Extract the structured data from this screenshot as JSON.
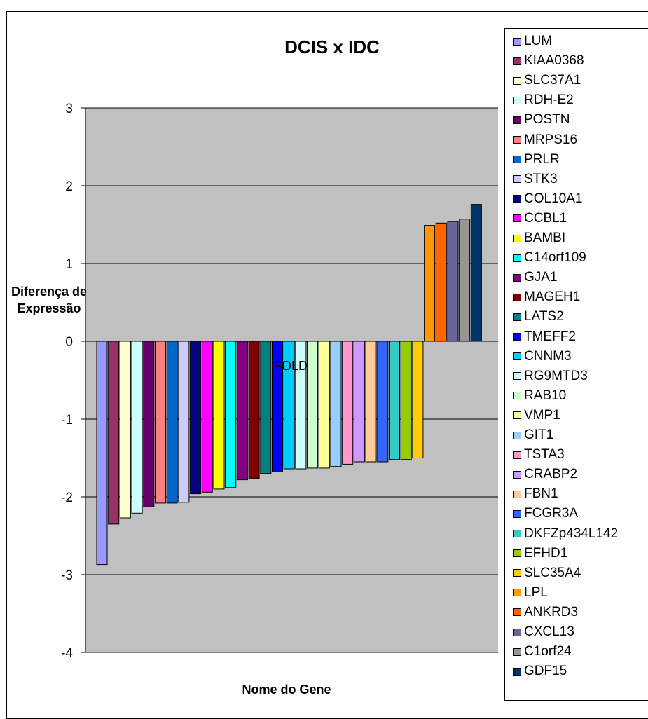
{
  "chart_data": {
    "type": "bar",
    "title": "DCIS x IDC",
    "xlabel": "Nome do Gene",
    "ylabel": "Diferença de Expressão",
    "annotation": "FOLD",
    "ylim": [
      -4,
      3
    ],
    "yticks": [
      3,
      2,
      1,
      0,
      -1,
      -2,
      -3,
      -4
    ],
    "grid": true,
    "legend_position": "right",
    "categories": [
      "LUM",
      "KIAA0368",
      "SLC37A1",
      "RDH-E2",
      "POSTN",
      "MRPS16",
      "PRLR",
      "STK3",
      "COL10A1",
      "CCBL1",
      "BAMBI",
      "C14orf109",
      "GJA1",
      "MAGEH1",
      "LATS2",
      "TMEFF2",
      "CNNM3",
      "RG9MTD3",
      "RAB10",
      "VMP1",
      "GIT1",
      "TSTA3",
      "CRABP2",
      "FBN1",
      "FCGR3A",
      "DKFZp434L142",
      "EFHD1",
      "SLC35A4",
      "LPL",
      "ANKRD3",
      "CXCL13",
      "C1orf24",
      "GDF15"
    ],
    "values": [
      -2.87,
      -2.35,
      -2.27,
      -2.21,
      -2.13,
      -2.08,
      -2.08,
      -2.07,
      -1.96,
      -1.94,
      -1.9,
      -1.88,
      -1.78,
      -1.76,
      -1.7,
      -1.68,
      -1.64,
      -1.64,
      -1.63,
      -1.63,
      -1.61,
      -1.58,
      -1.55,
      -1.55,
      -1.55,
      -1.52,
      -1.52,
      -1.5,
      1.49,
      1.52,
      1.54,
      1.57,
      1.76
    ],
    "colors": [
      "#9999FF",
      "#993366",
      "#FFFFCC",
      "#CCFFFF",
      "#660066",
      "#FF8080",
      "#0066CC",
      "#CCCCFF",
      "#000080",
      "#FF00FF",
      "#FFFF00",
      "#00FFFF",
      "#800080",
      "#800000",
      "#008080",
      "#0000FF",
      "#00CCFF",
      "#CCFFFF",
      "#CCFFCC",
      "#FFFF99",
      "#99CCFF",
      "#FF99CC",
      "#CC99FF",
      "#FFCC99",
      "#3366FF",
      "#33CCCC",
      "#99CC00",
      "#FFCC00",
      "#FF9900",
      "#FF6600",
      "#666699",
      "#969696",
      "#003366"
    ]
  },
  "colors": {
    "plot_bg": "#C0C0C0",
    "frame": "#000000"
  }
}
